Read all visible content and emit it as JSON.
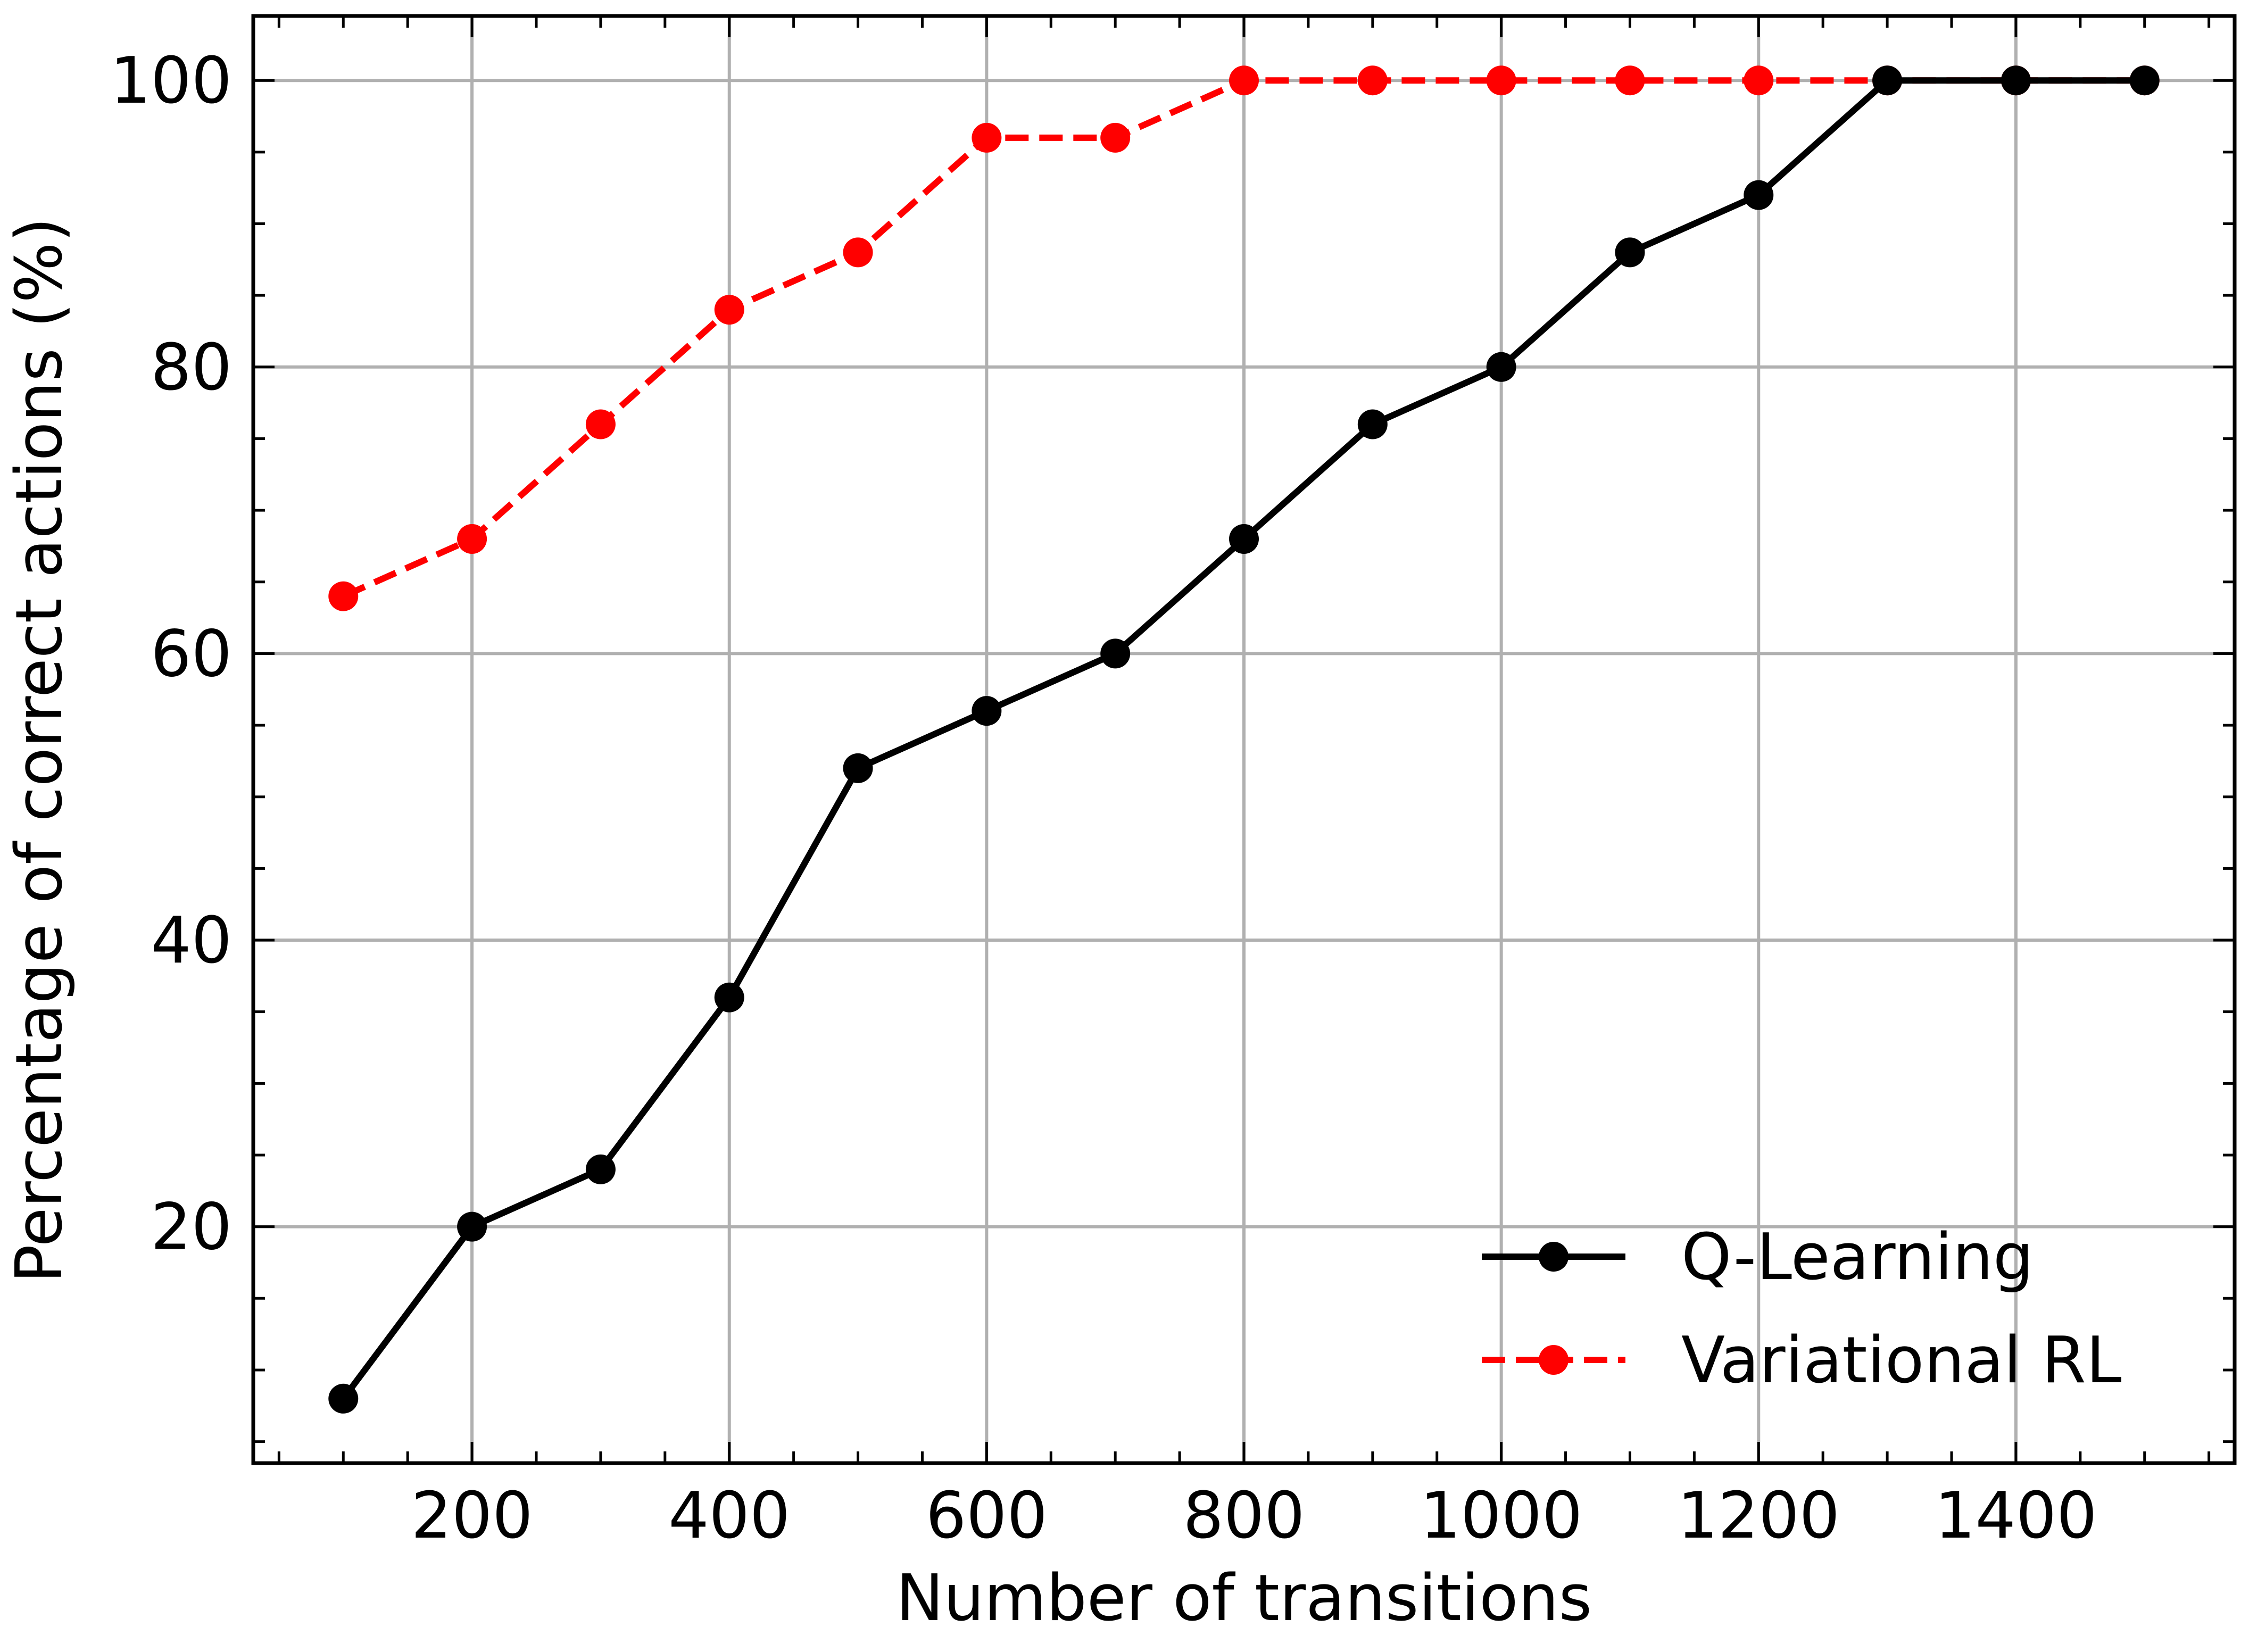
{
  "chart_data": {
    "type": "line",
    "title": "",
    "xlabel": "Number of transitions",
    "ylabel": "Percentage of correct actions (%)",
    "xlim": [
      30,
      1570
    ],
    "ylim": [
      3.5,
      104.5
    ],
    "xticks": [
      200,
      400,
      600,
      800,
      1000,
      1200,
      1400
    ],
    "yticks": [
      20,
      40,
      60,
      80,
      100
    ],
    "xminor_step": 50,
    "yminor_step": 5,
    "grid": true,
    "legend_position": "lower-right",
    "x": [
      100,
      200,
      300,
      400,
      500,
      600,
      700,
      800,
      900,
      1000,
      1100,
      1200,
      1300,
      1400,
      1500
    ],
    "series": [
      {
        "name": "Q-Learning",
        "color": "#000000",
        "linestyle": "solid",
        "values": [
          8,
          20,
          24,
          36,
          52,
          56,
          60,
          68,
          76,
          80,
          88,
          92,
          100,
          100,
          100
        ]
      },
      {
        "name": "Variational RL",
        "color": "#ff0000",
        "linestyle": "dashed",
        "values": [
          64,
          68,
          76,
          84,
          88,
          96,
          96,
          100,
          100,
          100,
          100,
          100,
          100,
          100,
          100
        ]
      }
    ]
  }
}
